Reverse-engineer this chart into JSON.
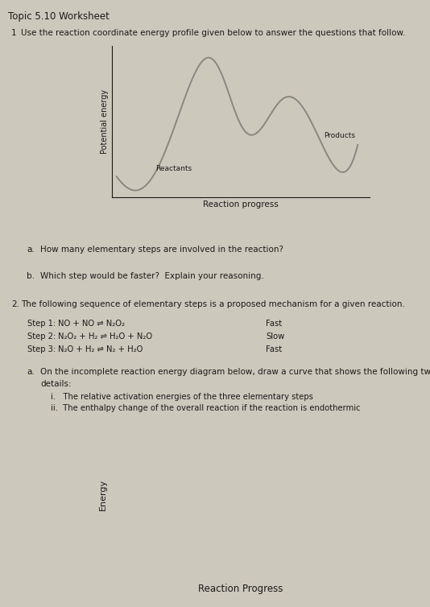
{
  "title": "Topic 5.10 Worksheet",
  "bg_color": "#cdc8bc",
  "q1_num": "1",
  "q1_text": "Use the reaction coordinate energy profile given below to answer the questions that follow.",
  "graph1": {
    "ylabel": "Potential energy",
    "xlabel": "Reaction progress",
    "reactants_label": "Reactants",
    "products_label": "Products"
  },
  "qa_label": "a.",
  "qa_text": "How many elementary steps are involved in the reaction?",
  "qb_label": "b.",
  "qb_text": "Which step would be faster?  Explain your reasoning.",
  "q2_num": "2.",
  "q2_text": "The following sequence of elementary steps is a proposed mechanism for a given reaction.",
  "steps": [
    [
      "Step 1:",
      "NO + NO ⇌ N₂O₂",
      "Fast"
    ],
    [
      "Step 2:",
      "N₂O₂ + H₂ ⇌ H₂O + N₂O",
      "Slow"
    ],
    [
      "Step 3:",
      "N₂O + H₂ ⇌ N₂ + H₂O",
      "Fast"
    ]
  ],
  "q2a_label": "a.",
  "q2a_line1": "On the incomplete reaction energy diagram below, draw a curve that shows the following two",
  "q2a_line2": "details:",
  "q2a_i": "i.   The relative activation energies of the three elementary steps",
  "q2a_ii": "ii.  The enthalpy change of the overall reaction if the reaction is endothermic",
  "graph2": {
    "ylabel": "Energy",
    "xlabel": "Reaction Progress"
  },
  "font_color": "#1a1a1a",
  "curve_color": "#888880"
}
